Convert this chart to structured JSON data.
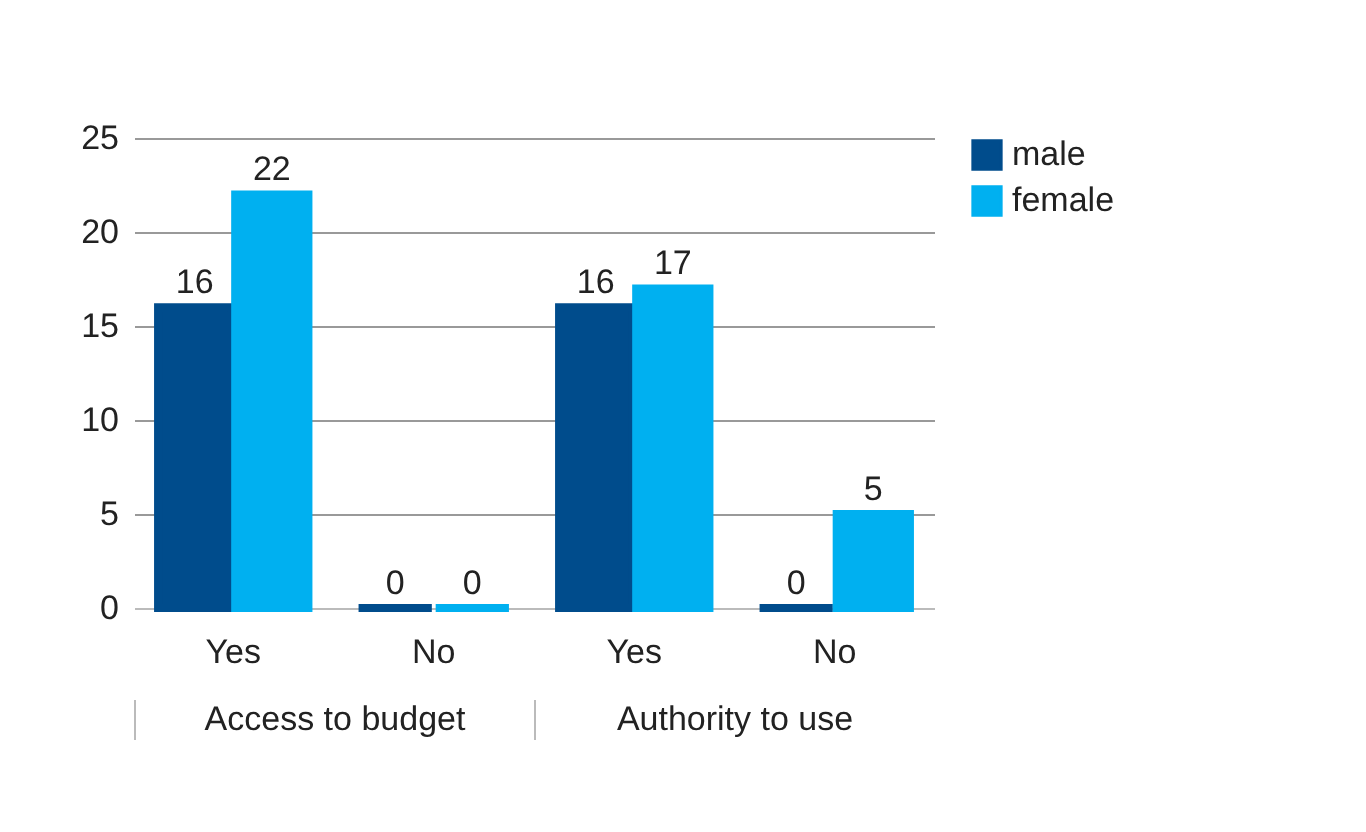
{
  "chart_data": {
    "type": "bar",
    "categories": [
      "Yes",
      "No",
      "Yes",
      "No"
    ],
    "series": [
      {
        "name": "male",
        "color": "#004c8c",
        "values": [
          16,
          0,
          16,
          0
        ]
      },
      {
        "name": "female",
        "color": "#00b0f0",
        "values": [
          22,
          0,
          17,
          5
        ]
      }
    ],
    "ylim": [
      0,
      25
    ],
    "yticks": [
      0,
      5,
      10,
      15,
      20,
      25
    ],
    "grid": "y",
    "legend": "right",
    "data_labels": true,
    "annotations": [
      "Access to budget",
      "Authority to use"
    ]
  }
}
